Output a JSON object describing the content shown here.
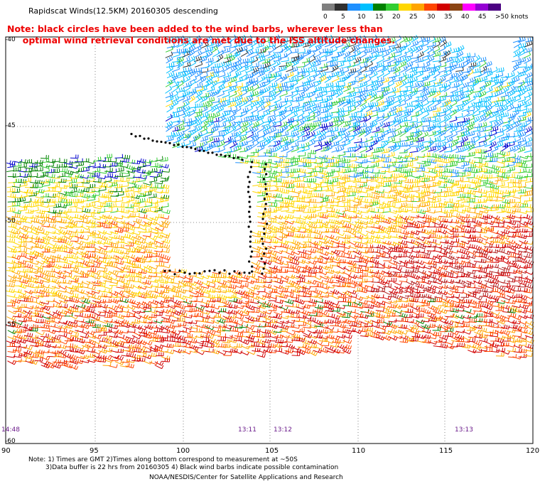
{
  "title": "Rapidscat Winds(12.5KM) 20160305 descending",
  "note": "Note: black circles have been added to the wind barbs, wherever less than\n     optimal wind retrieval conditions are met due to the ISS altitude changes.",
  "colorbar": {
    "labels": [
      "0",
      "5",
      "10",
      "15",
      "20",
      "25",
      "30",
      "35",
      "40",
      "45",
      ">50 knots"
    ],
    "colors": [
      "#7f7f7f",
      "#000000",
      "#1e90ff",
      "#00bfff",
      "#008000",
      "#32cd32",
      "#ffd700",
      "#ffa500",
      "#ff4500",
      "#d10000",
      "#8b4513",
      "#ff00ff",
      "#9400d3",
      "#4b0082"
    ]
  },
  "axes": {
    "lat_labels": [
      "-40",
      "-45",
      "-50",
      "-55",
      "-60"
    ],
    "lon_labels": [
      "90",
      "95",
      "100",
      "105",
      "110",
      "115",
      "120"
    ]
  },
  "times": [
    "14:48",
    "13:11",
    "13:12",
    "13:13"
  ],
  "footnote1": "Note: 1) Times are GMT 2)Times along bottom correspond to measurement at ~50S",
  "footnote2": "3)Data buffer is 22 hrs from 20160305 4) Black wind barbs indicate possible contamination",
  "credit": "NOAA/NESDIS/Center for Satellite Applications and Research"
}
